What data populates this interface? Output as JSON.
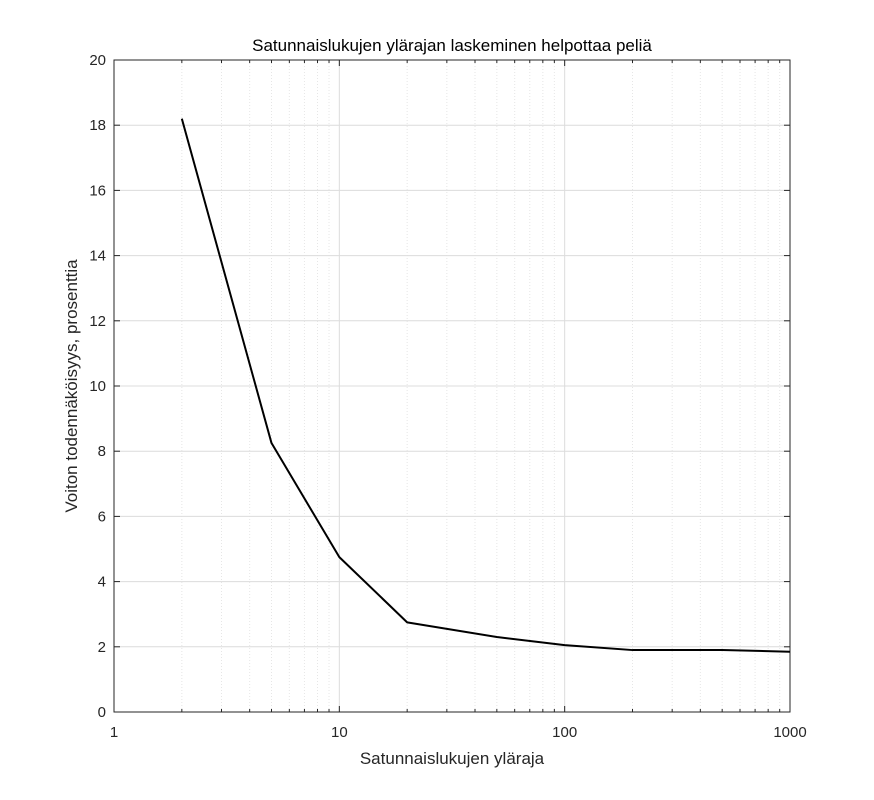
{
  "chart_data": {
    "type": "line",
    "title": "Satunnaislukujen ylärajan laskeminen helpottaa peliä",
    "xlabel": "Satunnaislukujen yläraja",
    "ylabel": "Voiton todennäköisyys, prosenttia",
    "xscale": "log",
    "xlim": [
      1,
      1000
    ],
    "ylim": [
      0,
      20
    ],
    "xticks": [
      1,
      10,
      100,
      1000
    ],
    "xtick_labels": [
      "1",
      "10",
      "100",
      "1000"
    ],
    "yticks": [
      0,
      2,
      4,
      6,
      8,
      10,
      12,
      14,
      16,
      18,
      20
    ],
    "ytick_labels": [
      "0",
      "2",
      "4",
      "6",
      "8",
      "10",
      "12",
      "14",
      "16",
      "18",
      "20"
    ],
    "grid": true,
    "minor_grid": true,
    "legend": "none",
    "series": [
      {
        "color": "#000000",
        "x": [
          2,
          5,
          10,
          20,
          50,
          100,
          200,
          500,
          1000
        ],
        "y": [
          18.2,
          8.25,
          4.75,
          2.75,
          2.3,
          2.05,
          1.9,
          1.9,
          1.85
        ]
      }
    ]
  }
}
